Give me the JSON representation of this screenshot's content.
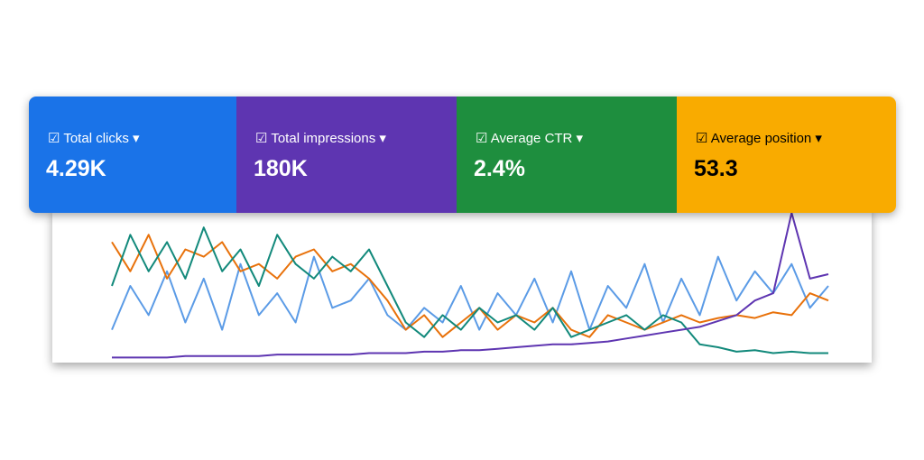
{
  "cards": [
    {
      "label": "Total clicks",
      "value": "4.29K",
      "color": "#1a73e8",
      "text_color": "#ffffff"
    },
    {
      "label": "Total impressions",
      "value": "180K",
      "color": "#5e35b1",
      "text_color": "#ffffff"
    },
    {
      "label": "Average CTR",
      "value": "2.4%",
      "color": "#1e8e3e",
      "text_color": "#ffffff"
    },
    {
      "label": "Average position",
      "value": "53.3",
      "color": "#f9ab00",
      "text_color": "#000000"
    }
  ],
  "chart_data": {
    "type": "line",
    "ylim": [
      0,
      100
    ],
    "series": [
      {
        "color": "#5b9be6",
        "values": [
          20,
          50,
          30,
          60,
          25,
          55,
          20,
          65,
          30,
          45,
          25,
          70,
          35,
          40,
          55,
          30,
          20,
          35,
          25,
          50,
          20,
          45,
          30,
          55,
          25,
          60,
          20,
          50,
          35,
          65,
          25,
          55,
          30,
          70,
          40,
          60,
          45,
          65,
          35,
          50
        ]
      },
      {
        "color": "#e8710a",
        "values": [
          80,
          60,
          85,
          55,
          75,
          70,
          80,
          60,
          65,
          55,
          70,
          75,
          60,
          65,
          55,
          40,
          20,
          30,
          15,
          25,
          35,
          20,
          30,
          25,
          35,
          20,
          15,
          30,
          25,
          20,
          25,
          30,
          25,
          28,
          30,
          28,
          32,
          30,
          45,
          40
        ]
      },
      {
        "color": "#12897b",
        "values": [
          50,
          85,
          60,
          80,
          55,
          90,
          60,
          75,
          50,
          85,
          65,
          55,
          70,
          60,
          75,
          50,
          25,
          15,
          30,
          20,
          35,
          25,
          30,
          20,
          35,
          15,
          20,
          25,
          30,
          20,
          30,
          25,
          10,
          8,
          5,
          6,
          4,
          5,
          4,
          4
        ]
      },
      {
        "color": "#5e35b1",
        "values": [
          1,
          1,
          1,
          1,
          2,
          2,
          2,
          2,
          2,
          3,
          3,
          3,
          3,
          3,
          4,
          4,
          4,
          5,
          5,
          6,
          6,
          7,
          8,
          9,
          10,
          10,
          11,
          12,
          14,
          16,
          18,
          20,
          22,
          26,
          30,
          40,
          45,
          100,
          55,
          58
        ]
      }
    ]
  }
}
